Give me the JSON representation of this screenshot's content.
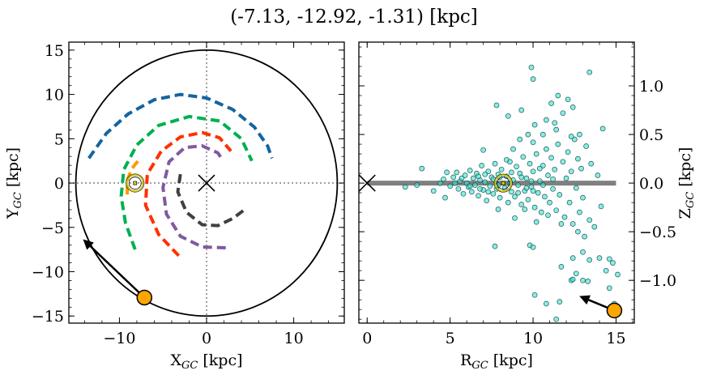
{
  "title": "(-7.13, -12.92, -1.31) [kpc]",
  "chart_data": [
    {
      "type": "line",
      "xlabel": "X",
      "xlabel_sub": "GC",
      "xlabel_unit": " [kpc]",
      "ylabel": "Y",
      "ylabel_sub": "GC",
      "ylabel_unit": " [kpc]",
      "xlim": [
        -15.8,
        15.8
      ],
      "ylim": [
        -15.8,
        15.9
      ],
      "xticks": [
        -10,
        0,
        10
      ],
      "yticks": [
        -15,
        -10,
        -5,
        0,
        5,
        10,
        15
      ],
      "xtick_labels": [
        "−10",
        "0",
        "10"
      ],
      "ytick_labels": [
        "−15",
        "−10",
        "−5",
        "0",
        "5",
        "10",
        "15"
      ],
      "orbit_circle_radius": 15,
      "galactic_center": [
        0,
        0
      ],
      "sun": [
        -8.2,
        0
      ],
      "object": [
        -7.13,
        -12.92
      ],
      "velocity_arrow_to": [
        -14.0,
        -6.5
      ],
      "spiral_arms": [
        {
          "color": "#1464a0",
          "points": [
            [
              -13.5,
              2.8
            ],
            [
              -11.5,
              5.6
            ],
            [
              -9,
              7.8
            ],
            [
              -6,
              9.4
            ],
            [
              -3,
              10
            ],
            [
              0,
              9.6
            ],
            [
              3,
              8.3
            ],
            [
              5.5,
              6.3
            ],
            [
              7,
              4.2
            ],
            [
              7.5,
              2.8
            ]
          ]
        },
        {
          "color": "#00b050",
          "points": [
            [
              -8.2,
              -7.5
            ],
            [
              -9.3,
              -4.5
            ],
            [
              -9.8,
              -1.5
            ],
            [
              -9.5,
              1.5
            ],
            [
              -8,
              4.3
            ],
            [
              -5.5,
              6.5
            ],
            [
              -2,
              7.5
            ],
            [
              1.5,
              7
            ],
            [
              4,
              5
            ],
            [
              5.2,
              2.5
            ]
          ]
        },
        {
          "color": "#ff3000",
          "points": [
            [
              -3.2,
              -8.2
            ],
            [
              -5.5,
              -5.8
            ],
            [
              -7,
              -2.5
            ],
            [
              -6.8,
              1
            ],
            [
              -5.2,
              3.6
            ],
            [
              -3,
              5.2
            ],
            [
              -0.5,
              5.7
            ],
            [
              1.5,
              5.1
            ],
            [
              2.8,
              3.6
            ]
          ]
        },
        {
          "color": "#7f5aa0",
          "points": [
            [
              2.2,
              -7.3
            ],
            [
              -0.5,
              -7.2
            ],
            [
              -3,
              -6
            ],
            [
              -4.6,
              -3.5
            ],
            [
              -5,
              -0.5
            ],
            [
              -4.3,
              2.4
            ],
            [
              -2.5,
              4
            ],
            [
              -0.5,
              4.2
            ],
            [
              1.3,
              3.4
            ],
            [
              1.7,
              2.8
            ]
          ]
        },
        {
          "color": "#404040",
          "points": [
            [
              -3,
              1
            ],
            [
              -3.3,
              -1
            ],
            [
              -2.3,
              -3.3
            ],
            [
              -0.5,
              -4.7
            ],
            [
              1.3,
              -4.8
            ],
            [
              3,
              -4
            ],
            [
              4.5,
              -2.9
            ]
          ]
        },
        {
          "color": "#ff9900",
          "points": [
            [
              -9.1,
              -1.3
            ],
            [
              -9.1,
              0.3
            ],
            [
              -8.6,
              1.6
            ],
            [
              -7.7,
              2.7
            ]
          ]
        }
      ]
    },
    {
      "type": "scatter",
      "xlabel": "R",
      "xlabel_sub": "GC",
      "xlabel_unit": " [kpc]",
      "ylabel": "Z",
      "ylabel_sub": "GC",
      "ylabel_unit": " [kpc]",
      "xlim": [
        -0.5,
        16.1
      ],
      "ylim": [
        -1.44,
        1.45
      ],
      "xticks": [
        0,
        5,
        10,
        15
      ],
      "yticks": [
        -1.0,
        -0.5,
        0.0,
        0.5,
        1.0
      ],
      "xtick_labels": [
        "0",
        "5",
        "10",
        "15"
      ],
      "ytick_labels": [
        "−1.0",
        "−0.5",
        "0.0",
        "0.5",
        "1.0"
      ],
      "point_color": "#40e0d0",
      "plane_line": {
        "x": [
          0,
          15
        ],
        "y": 0,
        "color": "#808080"
      },
      "galactic_center": [
        0,
        0
      ],
      "sun": [
        8.2,
        0
      ],
      "object": [
        14.9,
        -1.31
      ],
      "velocity_arrow_to": [
        12.9,
        -1.17
      ],
      "points": [
        [
          2.3,
          -0.04
        ],
        [
          3.0,
          -0.02
        ],
        [
          3.3,
          0.15
        ],
        [
          4.0,
          -0.08
        ],
        [
          4.4,
          0.0
        ],
        [
          4.6,
          0.04
        ],
        [
          4.7,
          -0.15
        ],
        [
          4.8,
          0.11
        ],
        [
          5.0,
          -0.03
        ],
        [
          5.2,
          0.06
        ],
        [
          5.4,
          0.11
        ],
        [
          5.5,
          -0.06
        ],
        [
          5.6,
          0.02
        ],
        [
          5.8,
          -0.11
        ],
        [
          5.9,
          0.08
        ],
        [
          6.0,
          0.0
        ],
        [
          6.1,
          -0.04
        ],
        [
          6.2,
          0.13
        ],
        [
          6.3,
          -0.09
        ],
        [
          6.4,
          0.05
        ],
        [
          6.5,
          -0.02
        ],
        [
          6.6,
          0.1
        ],
        [
          6.7,
          -0.13
        ],
        [
          6.8,
          0.03
        ],
        [
          6.9,
          0.18
        ],
        [
          7.0,
          -0.07
        ],
        [
          7.1,
          0.01
        ],
        [
          7.2,
          -0.18
        ],
        [
          7.3,
          0.12
        ],
        [
          7.4,
          -0.03
        ],
        [
          7.5,
          0.06
        ],
        [
          7.6,
          -0.11
        ],
        [
          7.7,
          0.2
        ],
        [
          7.8,
          -0.06
        ],
        [
          7.9,
          0.09
        ],
        [
          8.0,
          -0.15
        ],
        [
          8.1,
          0.14
        ],
        [
          8.3,
          -0.05
        ],
        [
          8.4,
          0.07
        ],
        [
          8.5,
          -0.2
        ],
        [
          8.6,
          0.22
        ],
        [
          8.7,
          -0.09
        ],
        [
          8.8,
          0.03
        ],
        [
          8.9,
          -0.14
        ],
        [
          9.0,
          0.17
        ],
        [
          9.1,
          -0.02
        ],
        [
          9.2,
          0.1
        ],
        [
          9.3,
          -0.22
        ],
        [
          9.4,
          0.27
        ],
        [
          9.5,
          -0.08
        ],
        [
          9.6,
          0.05
        ],
        [
          9.7,
          -0.17
        ],
        [
          9.8,
          0.2
        ],
        [
          9.9,
          -0.04
        ],
        [
          10.0,
          0.12
        ],
        [
          10.1,
          -0.25
        ],
        [
          10.2,
          0.3
        ],
        [
          10.3,
          -0.1
        ],
        [
          10.4,
          0.02
        ],
        [
          10.5,
          -0.3
        ],
        [
          10.6,
          0.18
        ],
        [
          10.7,
          -0.14
        ],
        [
          10.8,
          0.35
        ],
        [
          10.9,
          0.08
        ],
        [
          11.0,
          -0.2
        ],
        [
          11.1,
          0.26
        ],
        [
          11.2,
          -0.06
        ],
        [
          11.3,
          0.14
        ],
        [
          11.4,
          -0.28
        ],
        [
          11.5,
          0.4
        ],
        [
          11.6,
          -0.12
        ],
        [
          11.8,
          0.22
        ],
        [
          11.9,
          -0.35
        ],
        [
          12.0,
          0.05
        ],
        [
          12.1,
          0.32
        ],
        [
          12.2,
          -0.2
        ],
        [
          12.3,
          0.12
        ],
        [
          12.4,
          -0.42
        ],
        [
          12.5,
          0.45
        ],
        [
          12.6,
          -0.05
        ],
        [
          12.7,
          0.25
        ],
        [
          12.8,
          -0.3
        ],
        [
          12.9,
          0.15
        ],
        [
          13.0,
          -0.15
        ],
        [
          13.2,
          0.38
        ],
        [
          13.4,
          -0.38
        ],
        [
          13.5,
          0.2
        ],
        [
          13.7,
          -0.45
        ],
        [
          13.9,
          0.08
        ],
        [
          14.1,
          -0.24
        ],
        [
          6.2,
          -0.03
        ],
        [
          6.7,
          0.07
        ],
        [
          7.1,
          0.09
        ],
        [
          7.6,
          0.04
        ],
        [
          8.0,
          0.06
        ],
        [
          8.7,
          0.11
        ],
        [
          9.1,
          -0.1
        ],
        [
          9.6,
          -0.05
        ],
        [
          10.0,
          -0.08
        ],
        [
          10.4,
          0.15
        ],
        [
          5.3,
          0.0
        ],
        [
          5.7,
          0.05
        ],
        [
          6.8,
          -0.06
        ],
        [
          7.3,
          -0.09
        ],
        [
          7.9,
          -0.02
        ],
        [
          8.6,
          0.0
        ],
        [
          9.3,
          0.06
        ],
        [
          9.9,
          0.02
        ],
        [
          10.6,
          -0.02
        ],
        [
          11.2,
          0.04
        ],
        [
          7.0,
          0.34
        ],
        [
          8.4,
          0.24
        ],
        [
          8.8,
          0.35
        ],
        [
          9.2,
          0.45
        ],
        [
          9.7,
          0.5
        ],
        [
          10.0,
          0.42
        ],
        [
          10.6,
          0.5
        ],
        [
          11.4,
          0.55
        ],
        [
          12.3,
          0.48
        ],
        [
          12.8,
          0.5
        ],
        [
          7.9,
          -0.27
        ],
        [
          8.9,
          -0.36
        ],
        [
          9.5,
          -0.27
        ],
        [
          10.2,
          -0.4
        ],
        [
          10.9,
          -0.33
        ],
        [
          11.7,
          -0.42
        ],
        [
          12.7,
          -0.5
        ],
        [
          13.1,
          -0.55
        ],
        [
          7.8,
          0.8
        ],
        [
          8.5,
          0.69
        ],
        [
          9.3,
          0.75
        ],
        [
          10.1,
          0.6
        ],
        [
          10.8,
          0.65
        ],
        [
          11.3,
          0.62
        ],
        [
          11.8,
          0.72
        ],
        [
          12.4,
          0.78
        ],
        [
          14.2,
          0.56
        ],
        [
          9.9,
          1.19
        ],
        [
          10.0,
          1.07
        ],
        [
          11.5,
          0.9
        ],
        [
          11.1,
          0.82
        ],
        [
          12.1,
          0.86
        ],
        [
          13.4,
          1.14
        ],
        [
          7.7,
          -0.65
        ],
        [
          9.8,
          -0.64
        ],
        [
          10.0,
          -0.66
        ],
        [
          11.7,
          -0.86
        ],
        [
          12.4,
          -0.77
        ],
        [
          12.6,
          -0.93
        ],
        [
          13.0,
          -0.71
        ],
        [
          13.4,
          -0.79
        ],
        [
          14.0,
          -0.77
        ],
        [
          14.4,
          -0.9
        ],
        [
          14.6,
          -0.78
        ],
        [
          12.3,
          -1.0
        ],
        [
          12.4,
          -0.99
        ],
        [
          13.0,
          -1.0
        ],
        [
          13.3,
          -1.01
        ],
        [
          14.8,
          -0.82
        ],
        [
          15.1,
          -0.94
        ],
        [
          14.6,
          -1.08
        ],
        [
          10.1,
          -1.15
        ],
        [
          10.8,
          -1.24
        ],
        [
          11.6,
          -1.22
        ],
        [
          11.4,
          -1.4
        ],
        [
          14.9,
          -1.24
        ]
      ]
    }
  ]
}
